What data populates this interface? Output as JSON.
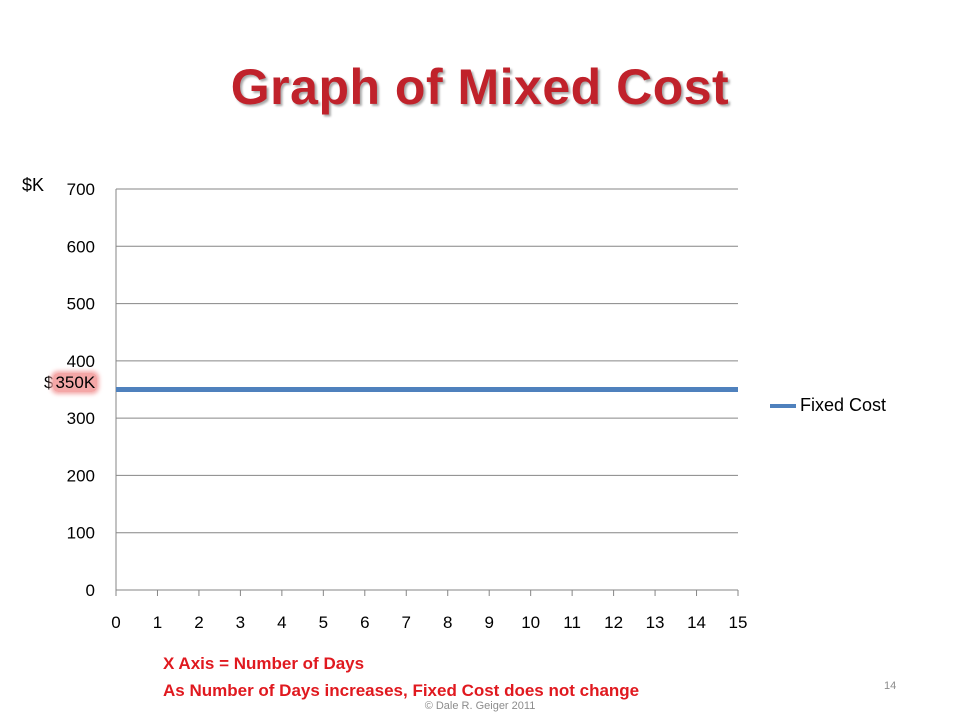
{
  "slide": {
    "title": "Graph of Mixed Cost",
    "notes": [
      "X Axis = Number of Days",
      "As Number of Days increases, Fixed Cost does not change"
    ],
    "slide_number": "14",
    "footer": "© Dale R. Geiger 2011"
  },
  "callouts": {
    "y_unit": "$K",
    "fixed_value_prefix": "$",
    "fixed_value": "350K"
  },
  "colors": {
    "title": "#c0222b",
    "notes": "#e0191f",
    "series": "#4f81bd",
    "gridline": "#868686",
    "highlight": "#f4a7a7"
  },
  "chart_data": {
    "type": "line",
    "x": [
      0,
      1,
      2,
      3,
      4,
      5,
      6,
      7,
      8,
      9,
      10,
      11,
      12,
      13,
      14,
      15
    ],
    "xlim": [
      0,
      15
    ],
    "ylim": [
      0,
      700
    ],
    "x_ticks": [
      0,
      1,
      2,
      3,
      4,
      5,
      6,
      7,
      8,
      9,
      10,
      11,
      12,
      13,
      14,
      15
    ],
    "y_ticks": [
      0,
      100,
      200,
      300,
      400,
      500,
      600,
      700
    ],
    "grid": "horizontal",
    "legend_position": "right",
    "series": [
      {
        "name": "Fixed Cost",
        "values": [
          350,
          350,
          350,
          350,
          350,
          350,
          350,
          350,
          350,
          350,
          350,
          350,
          350,
          350,
          350,
          350
        ]
      }
    ]
  }
}
